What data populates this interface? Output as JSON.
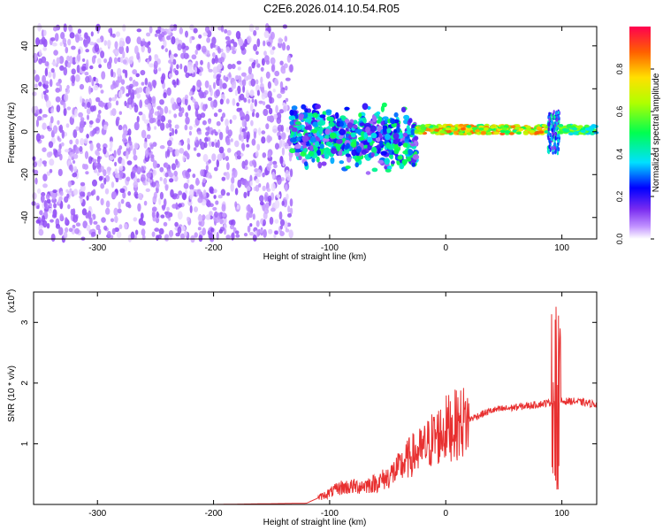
{
  "title": "C2E6.2026.014.10.54.R05",
  "colors": {
    "trace": "#e83030",
    "point_cloud": "#7a2cf0",
    "frame": "#000000"
  },
  "chart_data": [
    {
      "type": "heatmap",
      "ylabel": "Frequency (Hz)",
      "xlabel": "Height of straight line (km)",
      "xlim": [
        -355,
        130
      ],
      "ylim": [
        -50,
        49
      ],
      "xticks": [
        -300,
        -200,
        -100,
        0,
        100
      ],
      "yticks": [
        -40,
        -20,
        0,
        20,
        40
      ],
      "colorbar": {
        "label": "Normalized spectral amplitude",
        "range": [
          0,
          1
        ],
        "ticks": [
          0.0,
          0.2,
          0.4,
          0.6,
          0.8
        ],
        "tick_labels": [
          "0.0",
          "0.2",
          "0.4",
          "0.6",
          "0.8"
        ],
        "colormap": "rainbow"
      },
      "regions": [
        {
          "x": [
            -355,
            -133
          ],
          "freq": [
            -50,
            49
          ],
          "amplitude": 0.12,
          "pattern": "scattered"
        },
        {
          "x": [
            -133,
            -25
          ],
          "freq": [
            -15,
            12
          ],
          "amplitude": 0.35,
          "pattern": "cluster"
        },
        {
          "x": [
            -25,
            90
          ],
          "freq": [
            -1,
            3
          ],
          "amplitude": 0.75,
          "pattern": "band"
        },
        {
          "x": [
            88,
            98
          ],
          "freq": [
            -10,
            10
          ],
          "amplitude": 0.4,
          "pattern": "spike"
        },
        {
          "x": [
            98,
            130
          ],
          "freq": [
            -1,
            3
          ],
          "amplitude": 0.55,
          "pattern": "band"
        }
      ]
    },
    {
      "type": "line",
      "ylabel": "SNR (10 * v/v)",
      "xlabel": "Height of straight line (km)",
      "xlim": [
        -355,
        130
      ],
      "ylim": [
        0,
        3.5
      ],
      "xticks": [
        -300,
        -200,
        -100,
        0,
        100
      ],
      "yticks": [
        1,
        2,
        3
      ],
      "multiplier_label": "(x10",
      "multiplier_exp": "4",
      "multiplier_close": ")",
      "series": [
        {
          "x": [
            -355,
            -200,
            -120,
            -105,
            -90,
            -75,
            -60,
            -50,
            -40,
            -30,
            -20,
            -10,
            -5,
            0,
            10,
            20,
            30,
            40,
            60,
            80,
            90,
            95,
            97,
            100,
            110,
            130
          ],
          "y": [
            0.0,
            0.0,
            0.02,
            0.15,
            0.28,
            0.3,
            0.35,
            0.45,
            0.6,
            0.8,
            0.9,
            1.1,
            1.15,
            1.25,
            1.32,
            1.4,
            1.48,
            1.55,
            1.6,
            1.65,
            1.68,
            1.7,
            1.72,
            1.7,
            1.7,
            1.65
          ]
        }
      ]
    }
  ]
}
